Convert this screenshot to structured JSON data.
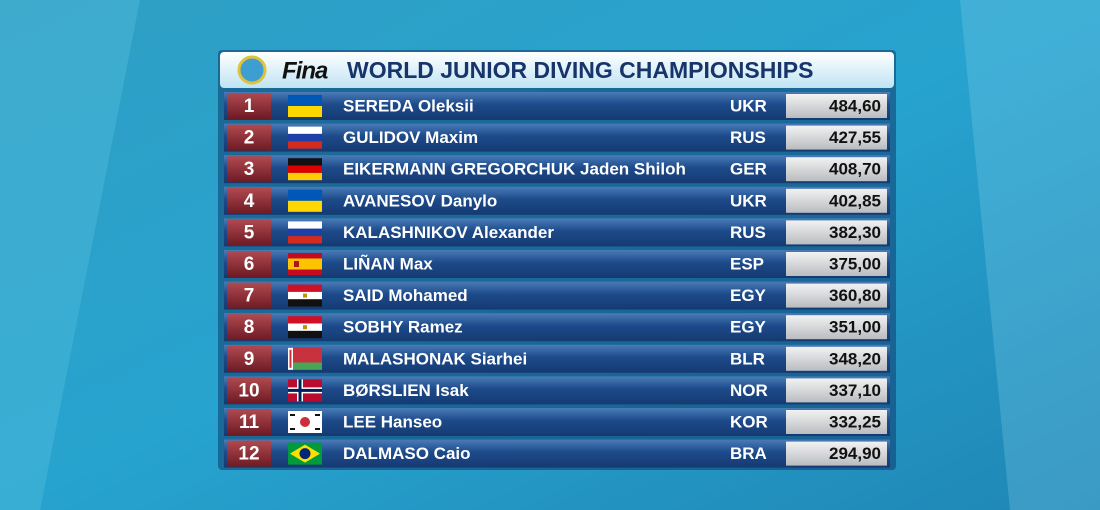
{
  "header": {
    "brand": "Fina",
    "title": "WORLD JUNIOR DIVING CHAMPIONSHIPS"
  },
  "table": {
    "rows": [
      [
        1,
        "SEREDA Oleksii",
        "UKR",
        "484,60"
      ],
      [
        2,
        "GULIDOV Maxim",
        "RUS",
        "427,55"
      ],
      [
        3,
        "EIKERMANN GREGORCHUK Jaden Shiloh",
        "GER",
        "408,70"
      ],
      [
        4,
        "AVANESOV Danylo",
        "UKR",
        "402,85"
      ],
      [
        5,
        "KALASHNIKOV Alexander",
        "RUS",
        "382,30"
      ],
      [
        6,
        "LIÑAN Max",
        "ESP",
        "375,00"
      ],
      [
        7,
        "SAID Mohamed",
        "EGY",
        "360,80"
      ],
      [
        8,
        "SOBHY Ramez",
        "EGY",
        "351,00"
      ],
      [
        9,
        "MALASHONAK Siarhei",
        "BLR",
        "348,20"
      ],
      [
        10,
        "BØRSLIEN Isak",
        "NOR",
        "337,10"
      ],
      [
        11,
        "LEE Hanseo",
        "KOR",
        "332,25"
      ],
      [
        12,
        "DALMASO Caio",
        "BRA",
        "294,90"
      ]
    ]
  }
}
